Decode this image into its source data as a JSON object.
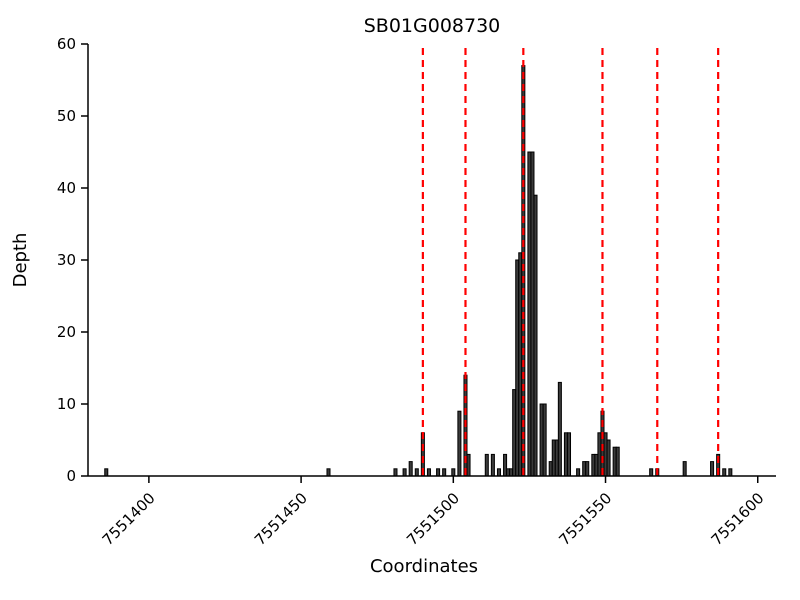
{
  "page": {
    "background": "#ffffff"
  },
  "chart_data": {
    "type": "bar",
    "title": "SB01G008730",
    "xlabel": "Coordinates",
    "ylabel": "Depth",
    "xlim": [
      7551380,
      7551606
    ],
    "ylim": [
      0,
      60
    ],
    "xticks": [
      7551400,
      7551450,
      7551500,
      7551550,
      7551600
    ],
    "yticks": [
      0,
      10,
      20,
      30,
      40,
      50,
      60
    ],
    "grid": false,
    "legend": "none",
    "bar_color": "#3b3b3b",
    "bar_edge_color": "#000000",
    "bar_width_units": 1.0,
    "vline_color": "#ff0000",
    "vline_style": "dashed",
    "vlines": [
      7551490,
      7551504,
      7551523,
      7551549,
      7551567,
      7551587
    ],
    "bars_format": "[coordinate, depth]",
    "bars": [
      [
        7551386,
        1
      ],
      [
        7551459,
        1
      ],
      [
        7551481,
        1
      ],
      [
        7551484,
        1
      ],
      [
        7551486,
        2
      ],
      [
        7551488,
        1
      ],
      [
        7551490,
        6
      ],
      [
        7551492,
        1
      ],
      [
        7551495,
        1
      ],
      [
        7551497,
        1
      ],
      [
        7551500,
        1
      ],
      [
        7551502,
        9
      ],
      [
        7551504,
        14
      ],
      [
        7551505,
        3
      ],
      [
        7551511,
        3
      ],
      [
        7551513,
        3
      ],
      [
        7551515,
        1
      ],
      [
        7551517,
        3
      ],
      [
        7551518,
        1
      ],
      [
        7551519,
        1
      ],
      [
        7551520,
        12
      ],
      [
        7551521,
        30
      ],
      [
        7551522,
        31
      ],
      [
        7551523,
        57
      ],
      [
        7551525,
        45
      ],
      [
        7551526,
        45
      ],
      [
        7551527,
        39
      ],
      [
        7551529,
        10
      ],
      [
        7551530,
        10
      ],
      [
        7551532,
        2
      ],
      [
        7551533,
        5
      ],
      [
        7551534,
        5
      ],
      [
        7551535,
        13
      ],
      [
        7551537,
        6
      ],
      [
        7551538,
        6
      ],
      [
        7551541,
        1
      ],
      [
        7551543,
        2
      ],
      [
        7551544,
        2
      ],
      [
        7551546,
        3
      ],
      [
        7551547,
        3
      ],
      [
        7551548,
        6
      ],
      [
        7551549,
        9
      ],
      [
        7551550,
        6
      ],
      [
        7551551,
        5
      ],
      [
        7551553,
        4
      ],
      [
        7551554,
        4
      ],
      [
        7551565,
        1
      ],
      [
        7551567,
        1
      ],
      [
        7551576,
        2
      ],
      [
        7551585,
        2
      ],
      [
        7551587,
        3
      ],
      [
        7551589,
        1
      ],
      [
        7551591,
        1
      ]
    ]
  }
}
